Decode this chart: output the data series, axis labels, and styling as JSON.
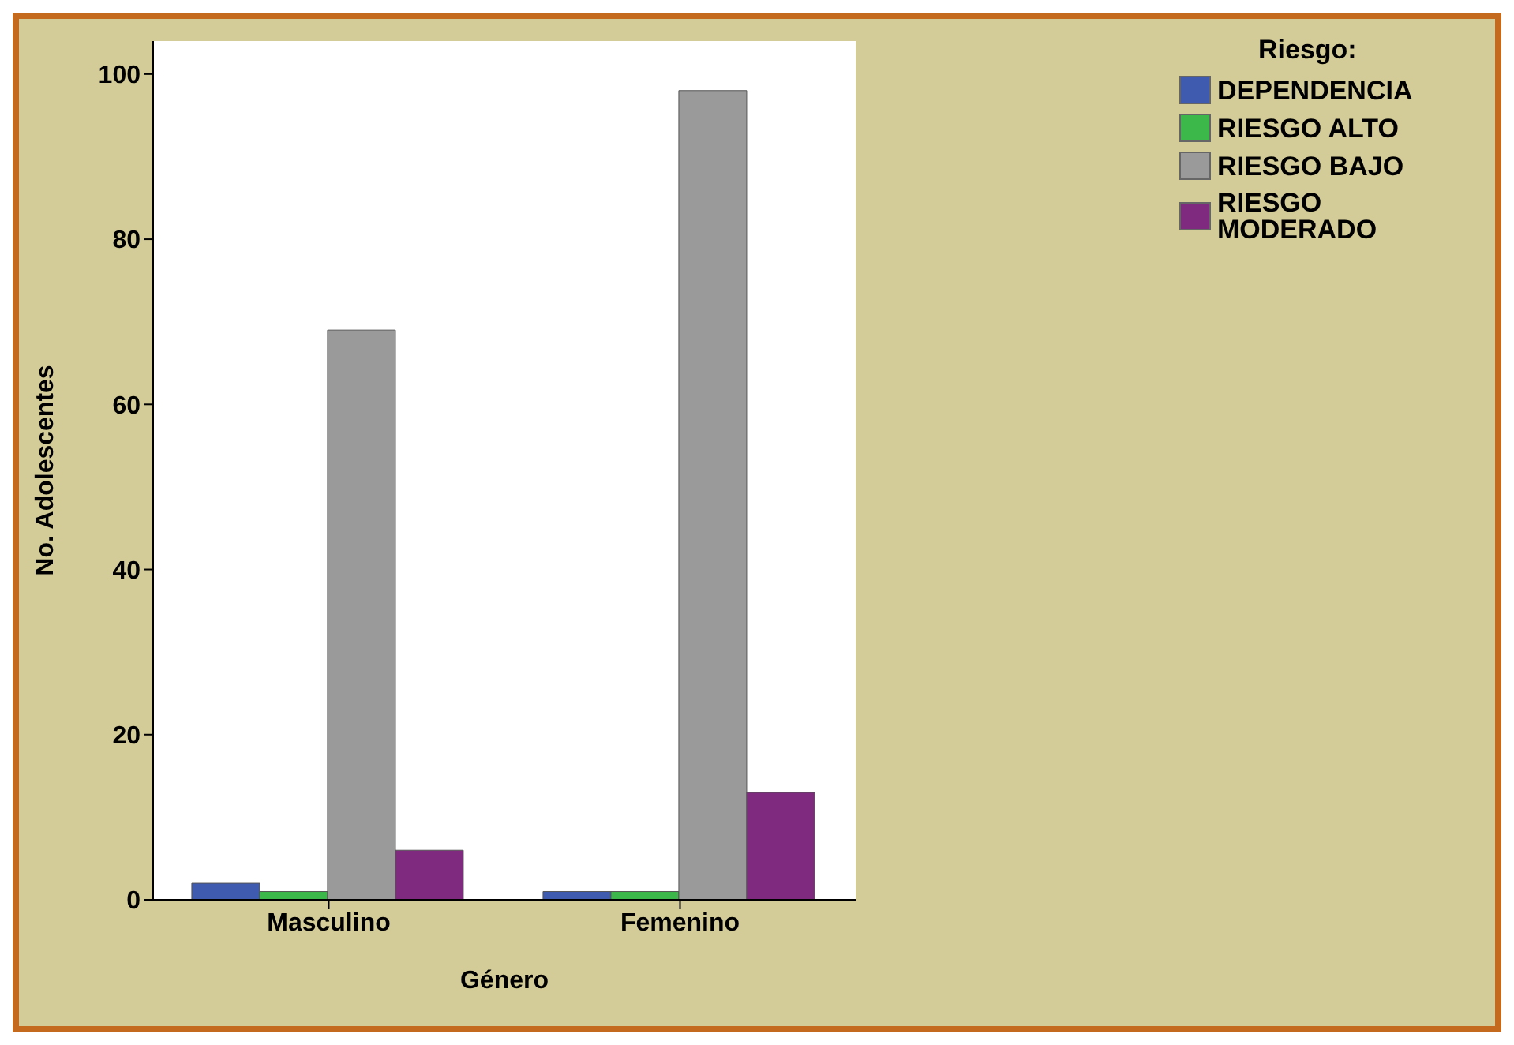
{
  "chart_data": {
    "type": "bar",
    "xlabel": "Género",
    "ylabel": "No. Adolescentes",
    "legend_title": "Riesgo:",
    "categories": [
      "Masculino",
      "Femenino"
    ],
    "series": [
      {
        "name": "DEPENDENCIA",
        "color": "#3e5bb0",
        "values": [
          2,
          1
        ]
      },
      {
        "name": "RIESGO ALTO",
        "color": "#3cb84a",
        "values": [
          1,
          1
        ]
      },
      {
        "name": "RIESGO BAJO",
        "color": "#9a9a9a",
        "values": [
          69,
          98
        ]
      },
      {
        "name": "RIESGO MODERADO",
        "color": "#7f2a7f",
        "values": [
          6,
          13
        ]
      }
    ],
    "ylim": [
      0,
      104
    ],
    "yticks": [
      0,
      20,
      40,
      60,
      80,
      100
    ],
    "grid": false,
    "legend": "top right"
  }
}
